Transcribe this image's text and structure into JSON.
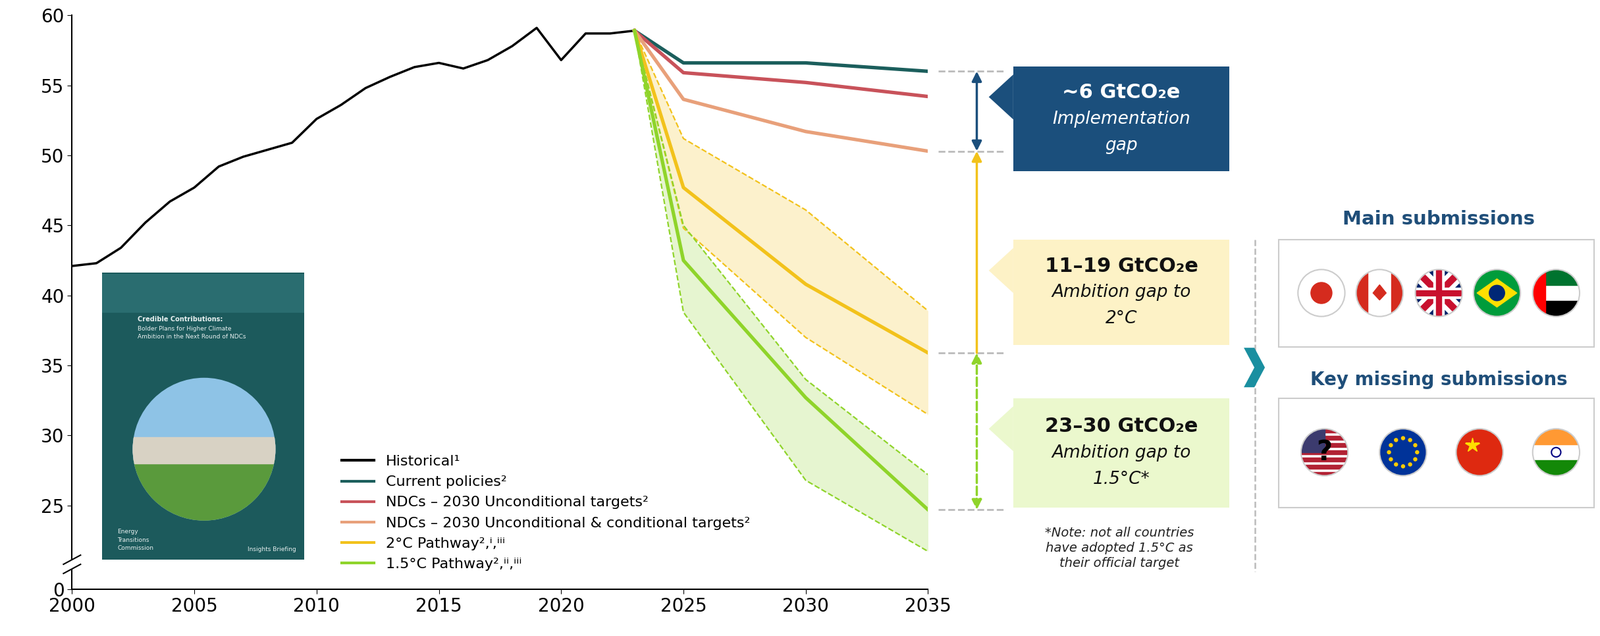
{
  "chart_data": {
    "type": "line",
    "xlim": [
      2000,
      2035
    ],
    "xticks": [
      2000,
      2005,
      2010,
      2015,
      2020,
      2025,
      2030,
      2035
    ],
    "ylim": [
      0,
      60
    ],
    "yticks": [
      0,
      25,
      30,
      35,
      40,
      45,
      50,
      55,
      60
    ],
    "grid": false,
    "legend": "lower left",
    "series": [
      {
        "name": "Historical¹",
        "color": "#000000",
        "x": [
          2000,
          2001,
          2002,
          2003,
          2004,
          2005,
          2006,
          2007,
          2008,
          2009,
          2010,
          2011,
          2012,
          2013,
          2014,
          2015,
          2016,
          2017,
          2018,
          2019,
          2020,
          2021,
          2022,
          2023
        ],
        "values": [
          42.1,
          42.3,
          43.4,
          45.2,
          46.7,
          47.7,
          49.2,
          49.9,
          50.4,
          50.9,
          52.6,
          53.6,
          54.8,
          55.6,
          56.3,
          56.6,
          56.2,
          56.8,
          57.8,
          59.1,
          56.8,
          58.7,
          58.7,
          58.9
        ]
      },
      {
        "name": "Current policies²",
        "color": "#1b5e5c",
        "x": [
          2023,
          2025,
          2030,
          2035
        ],
        "values": [
          58.9,
          56.6,
          56.6,
          56.0
        ]
      },
      {
        "name": "NDCs – 2030 Unconditional targets²",
        "color": "#c8525a",
        "x": [
          2023,
          2025,
          2030,
          2035
        ],
        "values": [
          58.9,
          55.9,
          55.2,
          54.2
        ]
      },
      {
        "name": "NDCs – 2030 Unconditional & conditional targets²",
        "color": "#e8a07a",
        "x": [
          2023,
          2025,
          2030,
          2035
        ],
        "values": [
          58.9,
          54.0,
          51.7,
          50.3
        ]
      },
      {
        "name": "2°C Pathway²,ⁱ,ⁱⁱⁱ",
        "color": "#f2c21b",
        "x": [
          2023,
          2025,
          2030,
          2035
        ],
        "values": [
          58.9,
          47.7,
          40.8,
          35.9
        ],
        "lower": [
          58.9,
          44.8,
          37.0,
          31.5
        ],
        "upper": [
          58.9,
          51.2,
          46.1,
          38.9
        ]
      },
      {
        "name": "1.5°C Pathway²,ⁱⁱ,ⁱⁱⁱ",
        "color": "#8fd42a",
        "x": [
          2023,
          2025,
          2030,
          2035
        ],
        "values": [
          58.9,
          42.5,
          32.7,
          24.7
        ],
        "lower": [
          58.9,
          38.8,
          26.8,
          20.0
        ],
        "upper": [
          58.9,
          45.0,
          34.0,
          27.2
        ]
      }
    ],
    "gaps": [
      {
        "lines": [
          "~6 GtCO₂e",
          "Implementation",
          "gap"
        ],
        "between": [
          "Current policies²",
          "NDCs – 2030 Unconditional & conditional targets²"
        ]
      },
      {
        "lines": [
          "11–19 GtCO₂e",
          "Ambition gap to",
          "2°C"
        ],
        "between": [
          "NDCs – 2030 Unconditional & conditional targets²",
          "2°C Pathway²,ⁱ,ⁱⁱⁱ"
        ]
      },
      {
        "lines": [
          "23–30 GtCO₂e",
          "Ambition gap to",
          "1.5°C*"
        ],
        "between": [
          "2°C Pathway²,ⁱ,ⁱⁱⁱ",
          "1.5°C Pathway²,ⁱⁱ,ⁱⁱⁱ"
        ]
      }
    ],
    "note": [
      "*Note: not all countries",
      "have adopted 1.5°C as",
      "their official target"
    ],
    "submissions": {
      "main_title": "Main submissions",
      "missing_title": "Key missing submissions",
      "missing_mark": "?"
    },
    "report_cover": {
      "title": "Credible Contributions:",
      "subtitle": [
        "Bolder Plans for Higher Climate",
        "Ambition in the Next Round of NDCs"
      ],
      "publisher": [
        "Energy",
        "Transitions",
        "Commission"
      ],
      "label": "Insights Briefing"
    }
  }
}
